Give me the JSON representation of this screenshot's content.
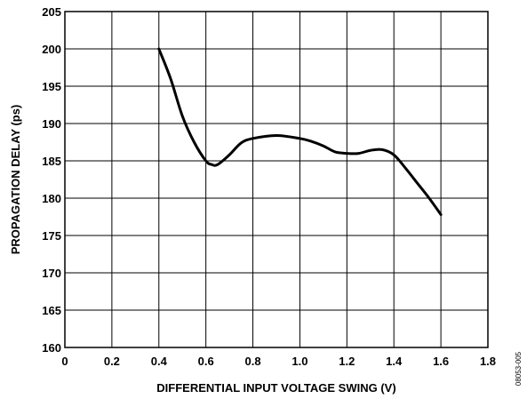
{
  "chart_data": {
    "type": "line",
    "title": "",
    "xlabel": "DIFFERENTIAL INPUT VOLTAGE SWING (V)",
    "ylabel": "PROPAGATION DELAY (ps)",
    "xlim": [
      0,
      1.8
    ],
    "ylim": [
      160,
      205
    ],
    "xticks": [
      0,
      0.2,
      0.4,
      0.6,
      0.8,
      1.0,
      1.2,
      1.4,
      1.6,
      1.8
    ],
    "xtick_labels": [
      "0",
      "0.2",
      "0.4",
      "0.6",
      "0.8",
      "1.0",
      "1.2",
      "1.4",
      "1.6",
      "1.8"
    ],
    "yticks": [
      160,
      165,
      170,
      175,
      180,
      185,
      190,
      195,
      200,
      205
    ],
    "ytick_labels": [
      "160",
      "165",
      "170",
      "175",
      "180",
      "185",
      "190",
      "195",
      "200",
      "205"
    ],
    "grid": true,
    "series": [
      {
        "x": [
          0.4,
          0.45,
          0.5,
          0.55,
          0.6,
          0.625,
          0.65,
          0.7,
          0.75,
          0.8,
          0.9,
          1.0,
          1.05,
          1.1,
          1.15,
          1.2,
          1.25,
          1.3,
          1.35,
          1.4,
          1.45,
          1.5,
          1.55,
          1.6
        ],
        "y": [
          200,
          196,
          191,
          187.5,
          185,
          184.5,
          184.5,
          185.8,
          187.4,
          188,
          188.4,
          188,
          187.6,
          187,
          186.2,
          186,
          186,
          186.4,
          186.5,
          185.8,
          184,
          182,
          180,
          177.8
        ]
      }
    ]
  },
  "doc_id": "08053-005"
}
